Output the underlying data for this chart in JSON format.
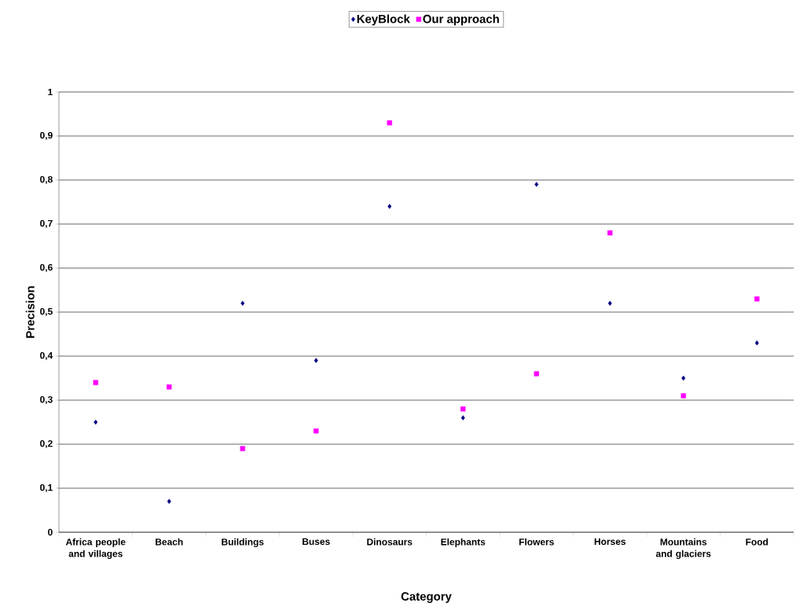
{
  "chart_data": {
    "type": "scatter",
    "xlabel": "Category",
    "ylabel": "Precision",
    "categories": [
      "Africa people and villages",
      "Beach",
      "Buildings",
      "Buses",
      "Dinosaurs",
      "Elephants",
      "Flowers",
      "Horses",
      "Mountains and glaciers",
      "Food"
    ],
    "series": [
      {
        "name": "KeyBlock",
        "color": "#000080",
        "marker": "diamond",
        "values": [
          0.25,
          0.07,
          0.52,
          0.39,
          0.74,
          0.26,
          0.79,
          0.52,
          0.35,
          0.43
        ]
      },
      {
        "name": "Our approach",
        "color": "#ff00ff",
        "marker": "square",
        "values": [
          0.34,
          0.33,
          0.19,
          0.23,
          0.93,
          0.28,
          0.36,
          0.68,
          0.31,
          0.53
        ]
      }
    ],
    "ylim": [
      0,
      1
    ],
    "yticks": [
      0,
      {
        "value": 0.1,
        "label": "0,1"
      },
      {
        "value": 0.2,
        "label": "0,2"
      },
      {
        "value": 0.3,
        "label": "0,3"
      },
      {
        "value": 0.4,
        "label": "0,4"
      },
      {
        "value": 0.5,
        "label": "0,5"
      },
      {
        "value": 0.6,
        "label": "0,6"
      },
      {
        "value": 0.7,
        "label": "0,7"
      },
      {
        "value": 0.8,
        "label": "0,8"
      },
      {
        "value": 0.9,
        "label": "0,9"
      },
      1
    ],
    "grid": "y",
    "legend": "top"
  }
}
